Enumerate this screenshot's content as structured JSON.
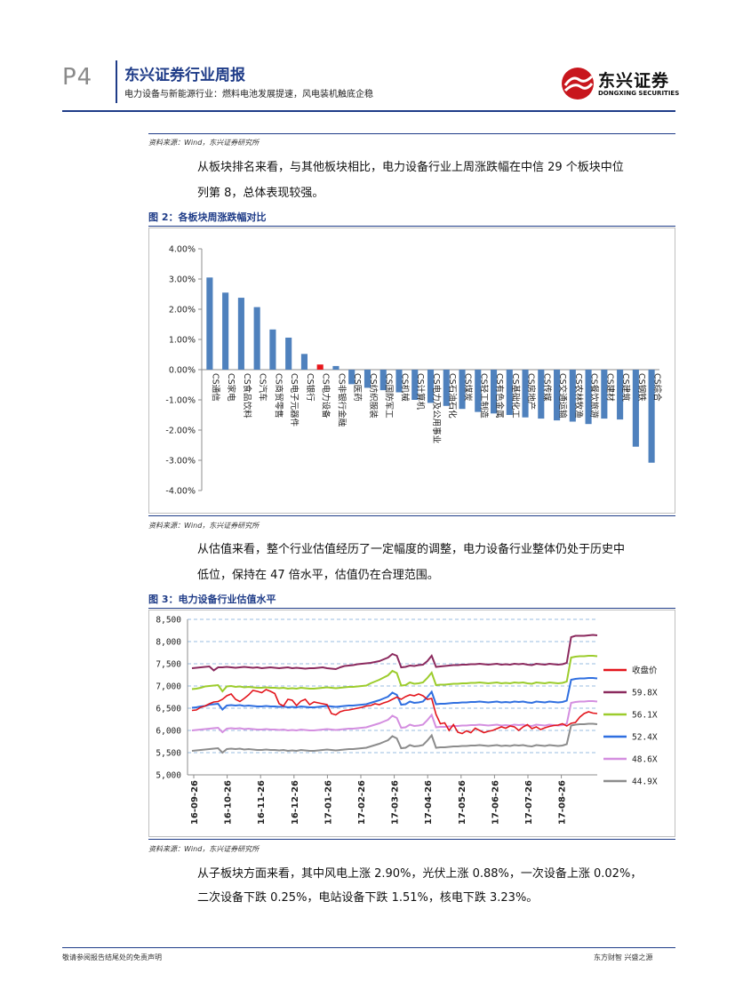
{
  "header": {
    "page_number": "P4",
    "report_title": "东兴证券行业周报",
    "report_subtitle": "电力设备与新能源行业：燃料电池发展提速，风电装机触底企稳",
    "logo_cn": "东兴证券",
    "logo_en": "DONGXING SECURITIES",
    "brand_color": "#c8161d",
    "accent_color": "#1f3c88"
  },
  "sources": {
    "top": "资料来源：Wind，东兴证券研究所",
    "fig2": "资料来源：Wind，东兴证券研究所",
    "fig3": "资料来源：Wind，东兴证券研究所"
  },
  "paragraphs": {
    "p1": [
      "从板块排名来看，与其他板块相比，电力设备行业上周涨跌幅在中信 29 个板块中位",
      "列第 8，总体表现较强。"
    ],
    "p2": [
      "从估值来看，整个行业估值经历了一定幅度的调整，电力设备行业整体仍处于历史中",
      "低位，保持在 47 倍水平，估值仍在合理范围。"
    ],
    "p3": [
      "从子板块方面来看，其中风电上涨 2.90%，光伏上涨 0.88%，一次设备上涨 0.02%，",
      "二次设备下跌 0.25%，电站设备下跌 1.51%，核电下跌 3.23%。"
    ]
  },
  "figures": {
    "fig2_title": "图 2：各板块周涨跌幅对比",
    "fig3_title": "图 3：电力设备行业估值水平"
  },
  "footer": {
    "left": "敬请参阅报告结尾处的免责声明",
    "right": "东方财智 兴盛之源"
  },
  "chart_data": [
    {
      "type": "bar",
      "categories": [
        "CS通信",
        "CS家电",
        "CS食品饮料",
        "CS汽车",
        "CS商贸零售",
        "CS电子元器件",
        "CS银行",
        "CS电力设备",
        "CS非银行金融",
        "CS医药",
        "CS纺织服装",
        "CS国防军工",
        "CS机械",
        "CS计算机",
        "CS电力及公用事业",
        "CS石油石化",
        "CS煤炭",
        "CS轻工制造",
        "CS有色金属",
        "CS基础化工",
        "CS房地产",
        "CS传媒",
        "CS交通运输",
        "CS农林牧渔",
        "CS餐饮旅游",
        "CS建材",
        "CS建筑",
        "CS钢铁",
        "CS综合"
      ],
      "values": [
        3.05,
        2.55,
        2.38,
        2.07,
        1.33,
        1.06,
        0.52,
        0.17,
        0.12,
        -0.48,
        -0.6,
        -0.68,
        -0.75,
        -1.0,
        -1.1,
        -1.2,
        -1.3,
        -1.4,
        -1.45,
        -1.5,
        -1.58,
        -1.62,
        -1.68,
        -1.72,
        -1.8,
        -1.62,
        -1.65,
        -2.55,
        -3.08
      ],
      "highlight_index": 7,
      "bar_color": "#4f81bd",
      "highlight_color": "#e8161b",
      "ylim": [
        -4.0,
        4.0
      ],
      "yticks": [
        "4.00%",
        "3.00%",
        "2.00%",
        "1.00%",
        "0.00%",
        "-1.00%",
        "-2.00%",
        "-3.00%",
        "-4.00%"
      ],
      "grid": false
    },
    {
      "type": "line",
      "x_ticks": [
        "16-09-26",
        "16-10-26",
        "16-11-26",
        "16-12-26",
        "17-01-26",
        "17-02-26",
        "17-03-26",
        "17-04-26",
        "17-05-26",
        "17-06-26",
        "17-07-26",
        "17-08-26"
      ],
      "ylim": [
        5000,
        8500
      ],
      "yticks": [
        "8,500",
        "8,000",
        "7,500",
        "7,000",
        "6,500",
        "6,000",
        "5,500",
        "5,000"
      ],
      "grid": true,
      "legend_position": "right",
      "series": [
        {
          "name": "收盘价",
          "color": "#e3151c",
          "values": [
            6450,
            6460,
            6520,
            6550,
            6600,
            6640,
            6650,
            6700,
            6780,
            6820,
            6700,
            6650,
            6720,
            6800,
            6900,
            6880,
            6850,
            6920,
            6880,
            6830,
            6600,
            6550,
            6700,
            6680,
            6560,
            6660,
            6700,
            6580,
            6640,
            6620,
            6600,
            6580,
            6380,
            6350,
            6420,
            6450,
            6460,
            6480,
            6500,
            6520,
            6550,
            6560,
            6600,
            6580,
            6620,
            6650,
            6700,
            6750,
            6700,
            6760,
            6800,
            6780,
            6820,
            6780,
            6700,
            6720,
            6360,
            6150,
            6170,
            6000,
            6130,
            5960,
            5930,
            5990,
            5950,
            6050,
            6000,
            5950,
            5980,
            6000,
            6040,
            6080,
            6050,
            6100,
            6080,
            6000,
            6080,
            6130,
            6040,
            6080,
            6020,
            6060,
            6090,
            6110,
            6120,
            6150,
            6100,
            6160,
            6180,
            6300,
            6380,
            6420,
            6390,
            6380
          ]
        },
        {
          "name": "59.8X",
          "color": "#8b2a5e",
          "values": [
            7400,
            7410,
            7420,
            7430,
            7440,
            7350,
            7420,
            7420,
            7430,
            7420,
            7410,
            7420,
            7430,
            7420,
            7410,
            7420,
            7400,
            7410,
            7420,
            7410,
            7400,
            7410,
            7420,
            7400,
            7410,
            7400,
            7390,
            7400,
            7400,
            7410,
            7420,
            7400,
            7390,
            7380,
            7420,
            7450,
            7460,
            7470,
            7490,
            7500,
            7510,
            7520,
            7540,
            7560,
            7600,
            7640,
            7720,
            7680,
            7420,
            7430,
            7460,
            7450,
            7470,
            7480,
            7560,
            7680,
            7430,
            7440,
            7450,
            7460,
            7470,
            7470,
            7480,
            7480,
            7490,
            7490,
            7500,
            7490,
            7480,
            7490,
            7500,
            7480,
            7490,
            7480,
            7500,
            7490,
            7500,
            7480,
            7470,
            7500,
            7490,
            7480,
            7500,
            7490,
            7480,
            7490,
            7520,
            8100,
            8130,
            8130,
            8130,
            8140,
            8150,
            8140
          ]
        },
        {
          "name": "56.1X",
          "color": "#9ccc2c",
          "values": [
            6930,
            6940,
            6960,
            6990,
            7000,
            7010,
            7020,
            6880,
            6990,
            7000,
            6980,
            6990,
            6970,
            6980,
            6970,
            6960,
            6960,
            6970,
            6960,
            6960,
            6950,
            6960,
            6940,
            6950,
            6940,
            6960,
            6950,
            6940,
            6940,
            6950,
            6960,
            6970,
            6960,
            6950,
            6960,
            6970,
            6980,
            6980,
            6990,
            7000,
            7010,
            7060,
            7100,
            7140,
            7190,
            7240,
            7340,
            7290,
            7010,
            7020,
            7080,
            7050,
            7060,
            7080,
            7180,
            7300,
            7020,
            7030,
            7030,
            7040,
            7050,
            7050,
            7060,
            7060,
            7070,
            7070,
            7080,
            7070,
            7060,
            7070,
            7080,
            7060,
            7070,
            7060,
            7080,
            7070,
            7080,
            7060,
            7050,
            7080,
            7070,
            7060,
            7080,
            7070,
            7060,
            7070,
            7100,
            7640,
            7660,
            7670,
            7670,
            7680,
            7680,
            7670
          ]
        },
        {
          "name": "52.4X",
          "color": "#2f6fe0",
          "values": [
            6510,
            6520,
            6540,
            6550,
            6580,
            6590,
            6600,
            6470,
            6560,
            6570,
            6560,
            6570,
            6550,
            6560,
            6550,
            6540,
            6540,
            6550,
            6540,
            6540,
            6530,
            6540,
            6520,
            6530,
            6520,
            6540,
            6530,
            6520,
            6520,
            6530,
            6540,
            6550,
            6540,
            6530,
            6540,
            6550,
            6560,
            6560,
            6570,
            6580,
            6590,
            6620,
            6650,
            6680,
            6720,
            6760,
            6850,
            6800,
            6580,
            6590,
            6650,
            6620,
            6630,
            6650,
            6750,
            6870,
            6590,
            6600,
            6600,
            6610,
            6620,
            6620,
            6630,
            6630,
            6640,
            6640,
            6650,
            6640,
            6630,
            6640,
            6650,
            6630,
            6640,
            6630,
            6650,
            6640,
            6650,
            6630,
            6620,
            6650,
            6640,
            6630,
            6650,
            6640,
            6630,
            6640,
            6670,
            7140,
            7160,
            7170,
            7170,
            7180,
            7180,
            7170
          ]
        },
        {
          "name": "48.6X",
          "color": "#d48fe0",
          "values": [
            6000,
            6010,
            6020,
            6030,
            6040,
            6050,
            6060,
            5960,
            6040,
            6050,
            6040,
            6050,
            6030,
            6040,
            6030,
            6020,
            6020,
            6030,
            6020,
            6020,
            6010,
            6020,
            6000,
            6010,
            6000,
            6020,
            6010,
            6000,
            6000,
            6010,
            6020,
            6030,
            6020,
            6010,
            6020,
            6030,
            6040,
            6040,
            6050,
            6060,
            6070,
            6100,
            6130,
            6160,
            6200,
            6240,
            6330,
            6280,
            6060,
            6070,
            6130,
            6100,
            6110,
            6130,
            6230,
            6350,
            6070,
            6080,
            6080,
            6090,
            6100,
            6100,
            6110,
            6110,
            6120,
            6120,
            6130,
            6120,
            6110,
            6120,
            6130,
            6110,
            6120,
            6110,
            6130,
            6120,
            6130,
            6110,
            6100,
            6130,
            6120,
            6110,
            6130,
            6120,
            6110,
            6120,
            6150,
            6620,
            6640,
            6650,
            6650,
            6660,
            6660,
            6650
          ]
        },
        {
          "name": "44.9X",
          "color": "#8c8c8c",
          "values": [
            5540,
            5550,
            5560,
            5570,
            5580,
            5590,
            5600,
            5500,
            5580,
            5590,
            5580,
            5590,
            5570,
            5580,
            5570,
            5560,
            5560,
            5570,
            5560,
            5560,
            5550,
            5560,
            5540,
            5550,
            5540,
            5560,
            5550,
            5540,
            5540,
            5550,
            5560,
            5570,
            5560,
            5550,
            5560,
            5570,
            5580,
            5580,
            5590,
            5600,
            5610,
            5640,
            5670,
            5700,
            5740,
            5780,
            5870,
            5820,
            5600,
            5610,
            5670,
            5640,
            5650,
            5670,
            5770,
            5890,
            5610,
            5620,
            5620,
            5630,
            5640,
            5640,
            5650,
            5650,
            5660,
            5660,
            5670,
            5660,
            5650,
            5660,
            5670,
            5650,
            5660,
            5650,
            5670,
            5660,
            5670,
            5650,
            5640,
            5670,
            5660,
            5650,
            5670,
            5660,
            5650,
            5660,
            5690,
            6110,
            6130,
            6140,
            6140,
            6150,
            6150,
            6140
          ]
        }
      ]
    }
  ]
}
